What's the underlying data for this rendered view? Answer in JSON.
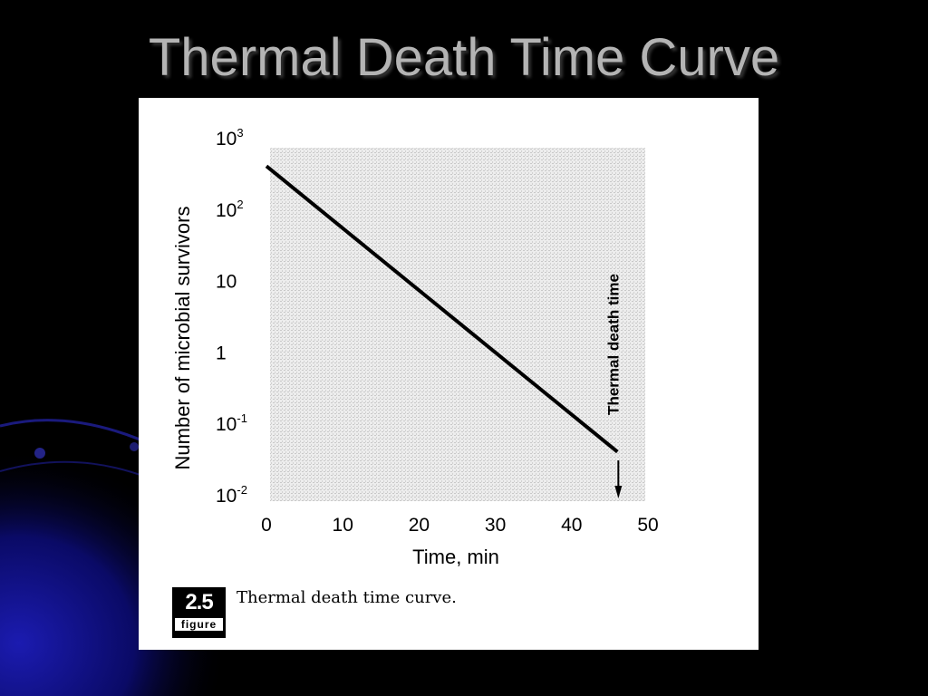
{
  "slide": {
    "title": "Thermal Death Time Curve"
  },
  "figure": {
    "number": "2.5",
    "badge_word": "figure",
    "caption": "Thermal death time curve."
  },
  "chart_data": {
    "type": "line",
    "xlabel": "Time, min",
    "ylabel": "Number of microbial survivors",
    "x_ticks": [
      0,
      10,
      20,
      30,
      40,
      50
    ],
    "y_scale": "log",
    "y_ticks": [
      {
        "value": 0.01,
        "base": "10",
        "exp": "-2"
      },
      {
        "value": 0.1,
        "base": "10",
        "exp": "-1"
      },
      {
        "value": 1,
        "base": "1",
        "exp": ""
      },
      {
        "value": 10,
        "base": "10",
        "exp": ""
      },
      {
        "value": 100,
        "base": "10",
        "exp": "2"
      },
      {
        "value": 1000,
        "base": "10",
        "exp": "3"
      }
    ],
    "xlim": [
      0,
      50
    ],
    "ylim": [
      0.01,
      1000
    ],
    "grid": true,
    "series": [
      {
        "x": [
          0,
          46
        ],
        "y": [
          400,
          0.04
        ]
      }
    ],
    "annotation": {
      "text": "Thermal death time",
      "x": 46
    }
  },
  "colors": {
    "background": "#000000",
    "title": "#b4b4b4",
    "panel": "#ffffff",
    "plot_area": "#e6e6e6",
    "line": "#000000",
    "accent": "#1a1aa8"
  }
}
